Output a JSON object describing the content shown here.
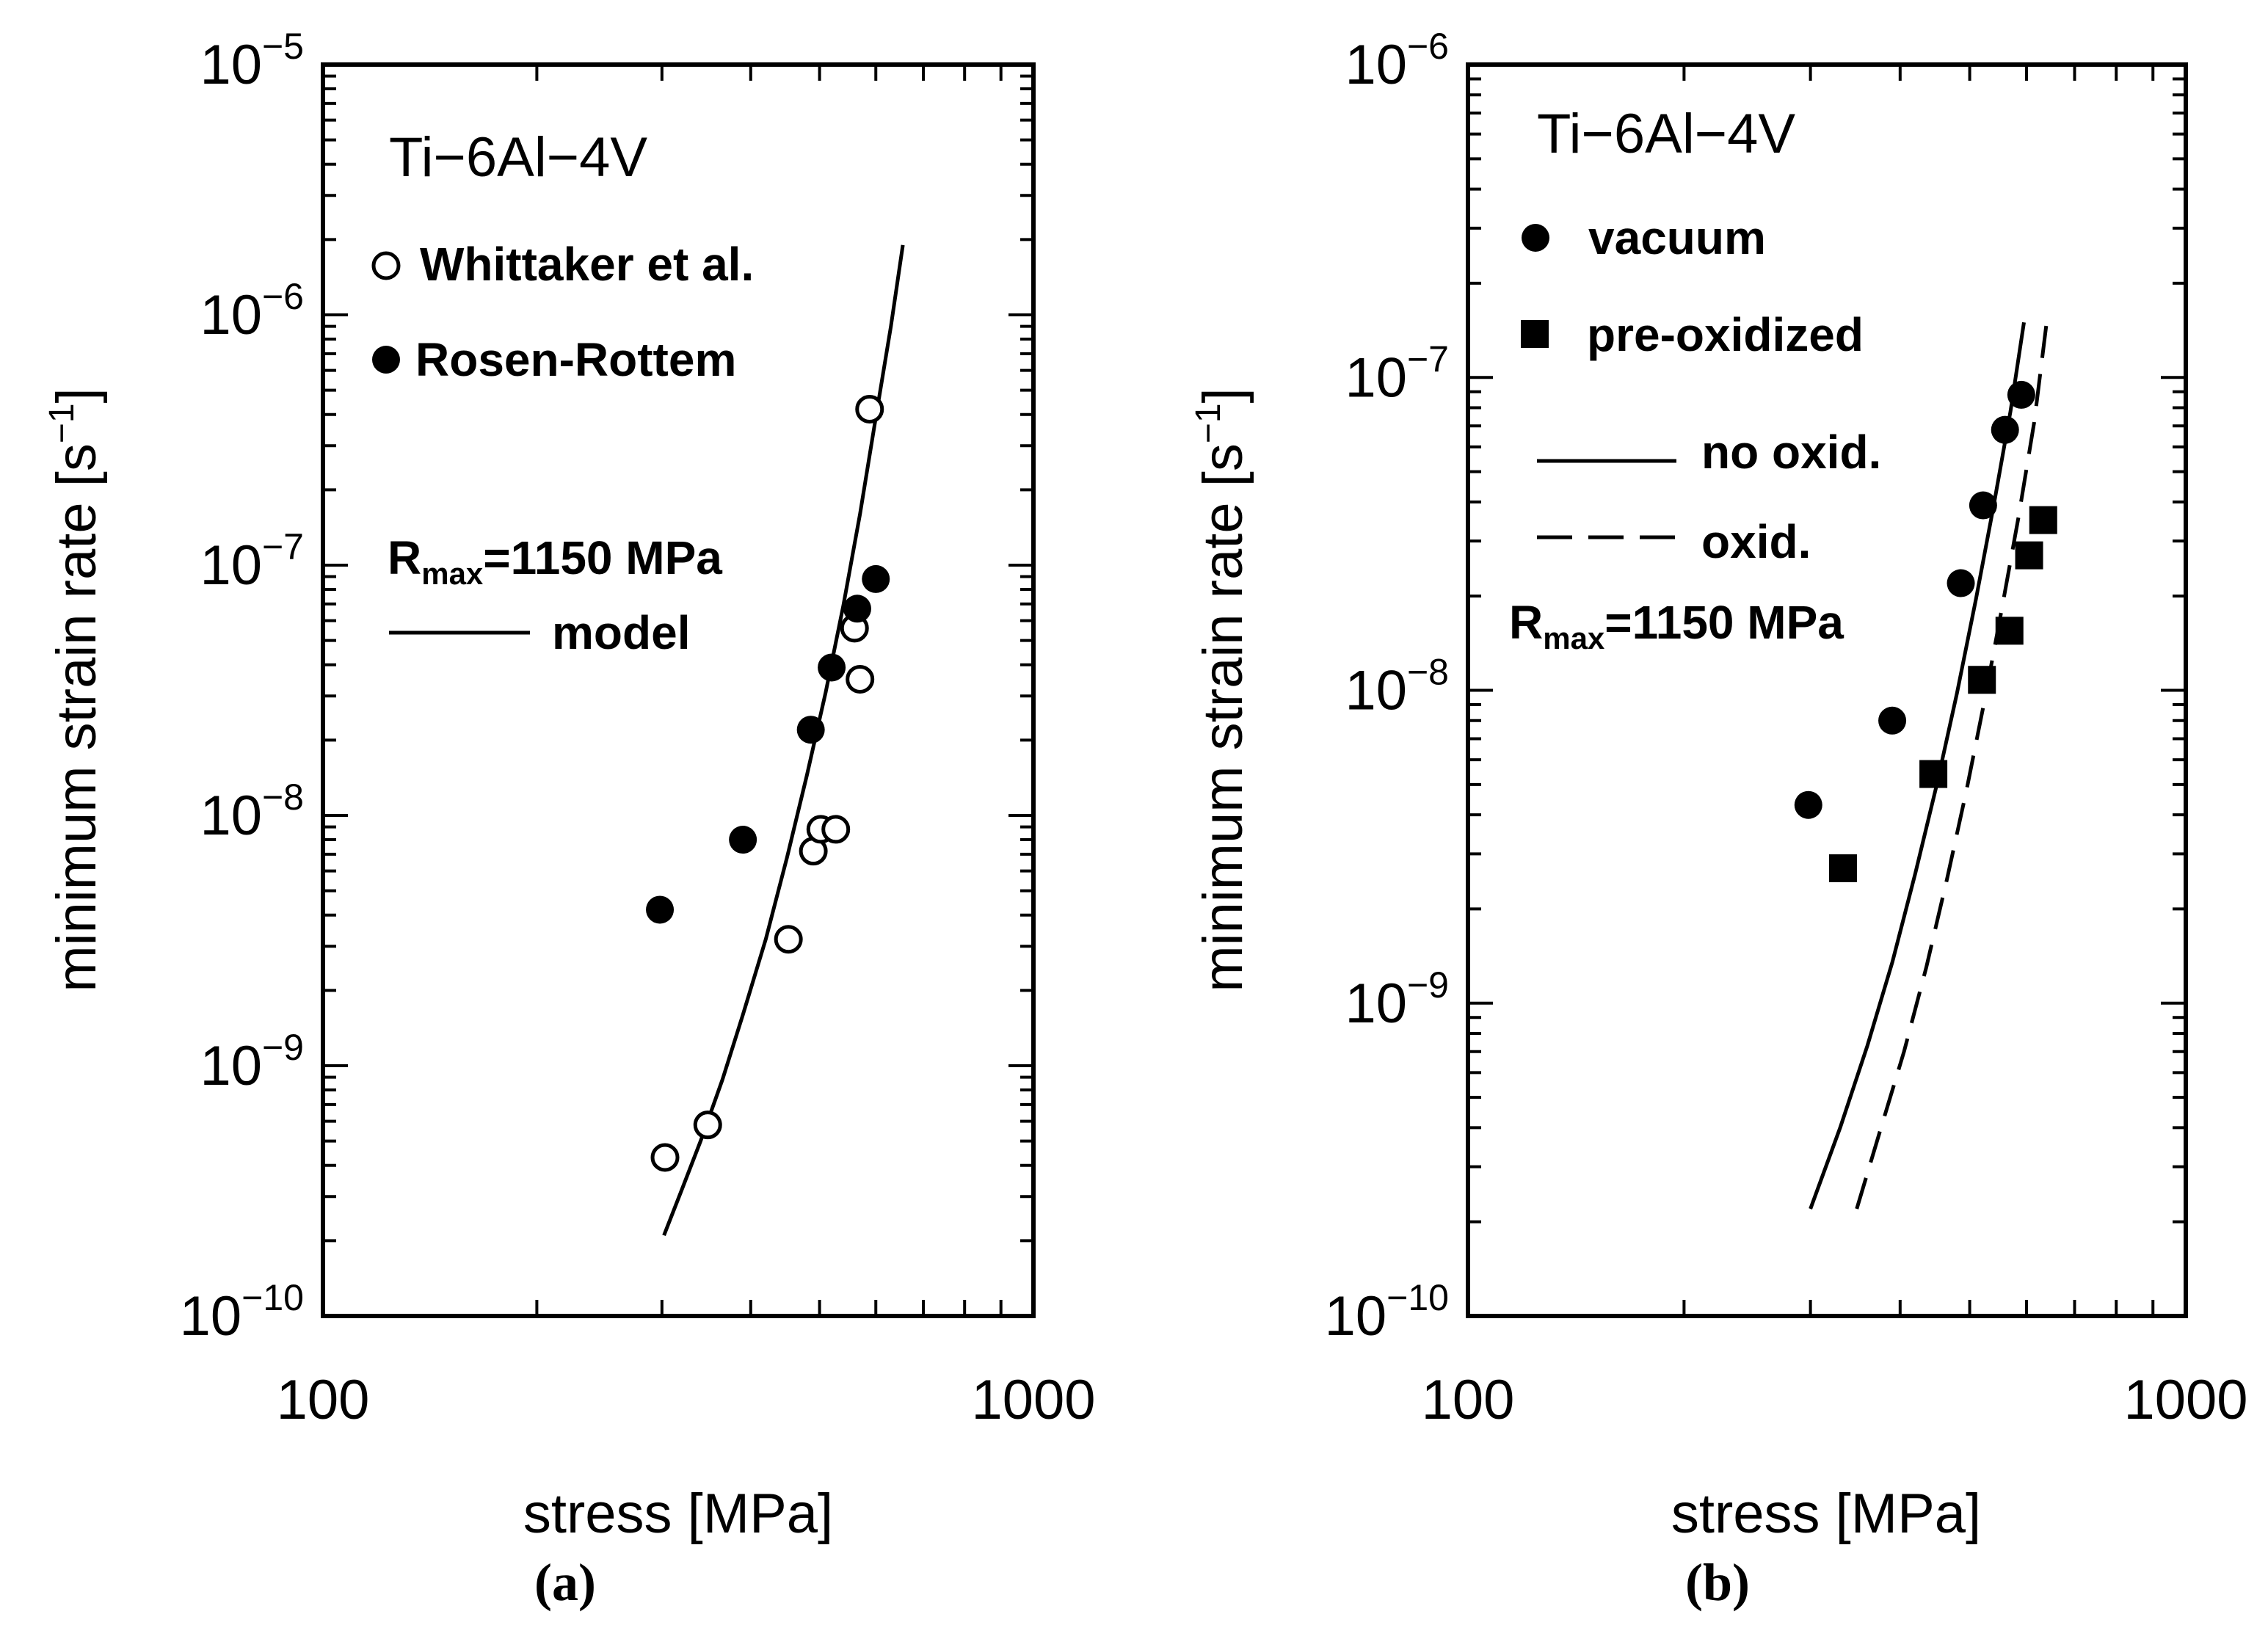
{
  "chart_data": [
    {
      "type": "scatter",
      "panel_label": "(a)",
      "inset_title": "Ti−6Al−4V",
      "xlabel": "stress [MPa]",
      "ylabel": "minimum strain rate [s",
      "ylabel_sup": "−1",
      "ylabel_close": "]",
      "xscale": "log",
      "yscale": "log",
      "xlim": [
        100,
        1000
      ],
      "ylim": [
        1e-10,
        1e-05
      ],
      "x_ticks": [
        100,
        1000
      ],
      "x_tick_labels": [
        "100",
        "1000"
      ],
      "y_ticks": [
        1e-10,
        1e-09,
        1e-08,
        1e-07,
        1e-06,
        1e-05
      ],
      "y_tick_labels": [
        {
          "base": "10",
          "exp": "−10"
        },
        {
          "base": "10",
          "exp": "−9"
        },
        {
          "base": "10",
          "exp": "−8"
        },
        {
          "base": "10",
          "exp": "−7"
        },
        {
          "base": "10",
          "exp": "−6"
        },
        {
          "base": "10",
          "exp": "−5"
        }
      ],
      "rmax": {
        "prefix": "R",
        "sub": "max",
        "suffix": "=1150 MPa"
      },
      "series": [
        {
          "name": "Whittaker et al.",
          "marker": "open-circle",
          "points": [
            [
              303,
              4.3e-10
            ],
            [
              348,
              5.8e-10
            ],
            [
              452,
              3.2e-09
            ],
            [
              490,
              7.2e-09
            ],
            [
              502,
              8.8e-09
            ],
            [
              527,
              8.8e-09
            ],
            [
              560,
              5.6e-08
            ],
            [
              570,
              3.5e-08
            ],
            [
              588,
              4.2e-07
            ]
          ]
        },
        {
          "name": "Rosen-Rottem",
          "marker": "filled-circle",
          "points": [
            [
              298,
              4.2e-09
            ],
            [
              390,
              8e-09
            ],
            [
              486,
              2.2e-08
            ],
            [
              520,
              3.9e-08
            ],
            [
              565,
              6.7e-08
            ],
            [
              600,
              8.8e-08
            ]
          ]
        }
      ],
      "curves": [
        {
          "name": "model",
          "style": "solid",
          "points": [
            [
              302,
              2.1e-10
            ],
            [
              320,
              3.2e-10
            ],
            [
              340,
              5e-10
            ],
            [
              365,
              8.8e-10
            ],
            [
              390,
              1.6e-09
            ],
            [
              420,
              3.2e-09
            ],
            [
              450,
              6.8e-09
            ],
            [
              480,
              1.45e-08
            ],
            [
              510,
              3.1e-08
            ],
            [
              540,
              6.9e-08
            ],
            [
              570,
              1.6e-07
            ],
            [
              600,
              3.9e-07
            ],
            [
              630,
              9e-07
            ],
            [
              655,
              1.9e-06
            ]
          ]
        }
      ]
    },
    {
      "type": "scatter",
      "panel_label": "(b)",
      "inset_title": "Ti−6Al−4V",
      "xlabel": "stress [MPa]",
      "ylabel": "minimum strain rate [s",
      "ylabel_sup": "−1",
      "ylabel_close": "]",
      "xscale": "log",
      "yscale": "log",
      "xlim": [
        100,
        1000
      ],
      "ylim": [
        1e-10,
        1e-06
      ],
      "x_ticks": [
        100,
        1000
      ],
      "x_tick_labels": [
        "100",
        "1000"
      ],
      "y_ticks": [
        1e-10,
        1e-09,
        1e-08,
        1e-07,
        1e-06
      ],
      "y_tick_labels": [
        {
          "base": "10",
          "exp": "−10"
        },
        {
          "base": "10",
          "exp": "−9"
        },
        {
          "base": "10",
          "exp": "−8"
        },
        {
          "base": "10",
          "exp": "−7"
        },
        {
          "base": "10",
          "exp": "−6"
        }
      ],
      "rmax": {
        "prefix": "R",
        "sub": "max",
        "suffix": "=1150 MPa"
      },
      "series": [
        {
          "name": "vacuum",
          "marker": "filled-circle",
          "points": [
            [
              298,
              4.3e-09
            ],
            [
              390,
              8e-09
            ],
            [
              486,
              2.2e-08
            ],
            [
              522,
              3.9e-08
            ],
            [
              560,
              6.8e-08
            ],
            [
              590,
              8.8e-08
            ]
          ]
        },
        {
          "name": "pre-oxidized",
          "marker": "filled-square",
          "points": [
            [
              333,
              2.7e-09
            ],
            [
              445,
              5.4e-09
            ],
            [
              520,
              1.08e-08
            ],
            [
              568,
              1.55e-08
            ],
            [
              605,
              2.7e-08
            ],
            [
              633,
              3.5e-08
            ]
          ]
        }
      ],
      "curves": [
        {
          "name": "no oxid.",
          "style": "solid",
          "points": [
            [
              300,
              2.2e-10
            ],
            [
              330,
              4e-10
            ],
            [
              360,
              7.3e-10
            ],
            [
              390,
              1.35e-09
            ],
            [
              420,
              2.6e-09
            ],
            [
              450,
              5e-09
            ],
            [
              480,
              9.8e-09
            ],
            [
              510,
              1.95e-08
            ],
            [
              540,
              3.9e-08
            ],
            [
              570,
              7.8e-08
            ],
            [
              595,
              1.5e-07
            ]
          ]
        },
        {
          "name": "oxid.",
          "style": "dashed",
          "points": [
            [
              348,
              2.2e-10
            ],
            [
              375,
              3.9e-10
            ],
            [
              405,
              7e-10
            ],
            [
              435,
              1.3e-09
            ],
            [
              465,
              2.5e-09
            ],
            [
              495,
              4.8e-09
            ],
            [
              525,
              9.4e-09
            ],
            [
              555,
              1.85e-08
            ],
            [
              585,
              3.6e-08
            ],
            [
              615,
              7.2e-08
            ],
            [
              640,
              1.5e-07
            ]
          ]
        }
      ]
    }
  ]
}
